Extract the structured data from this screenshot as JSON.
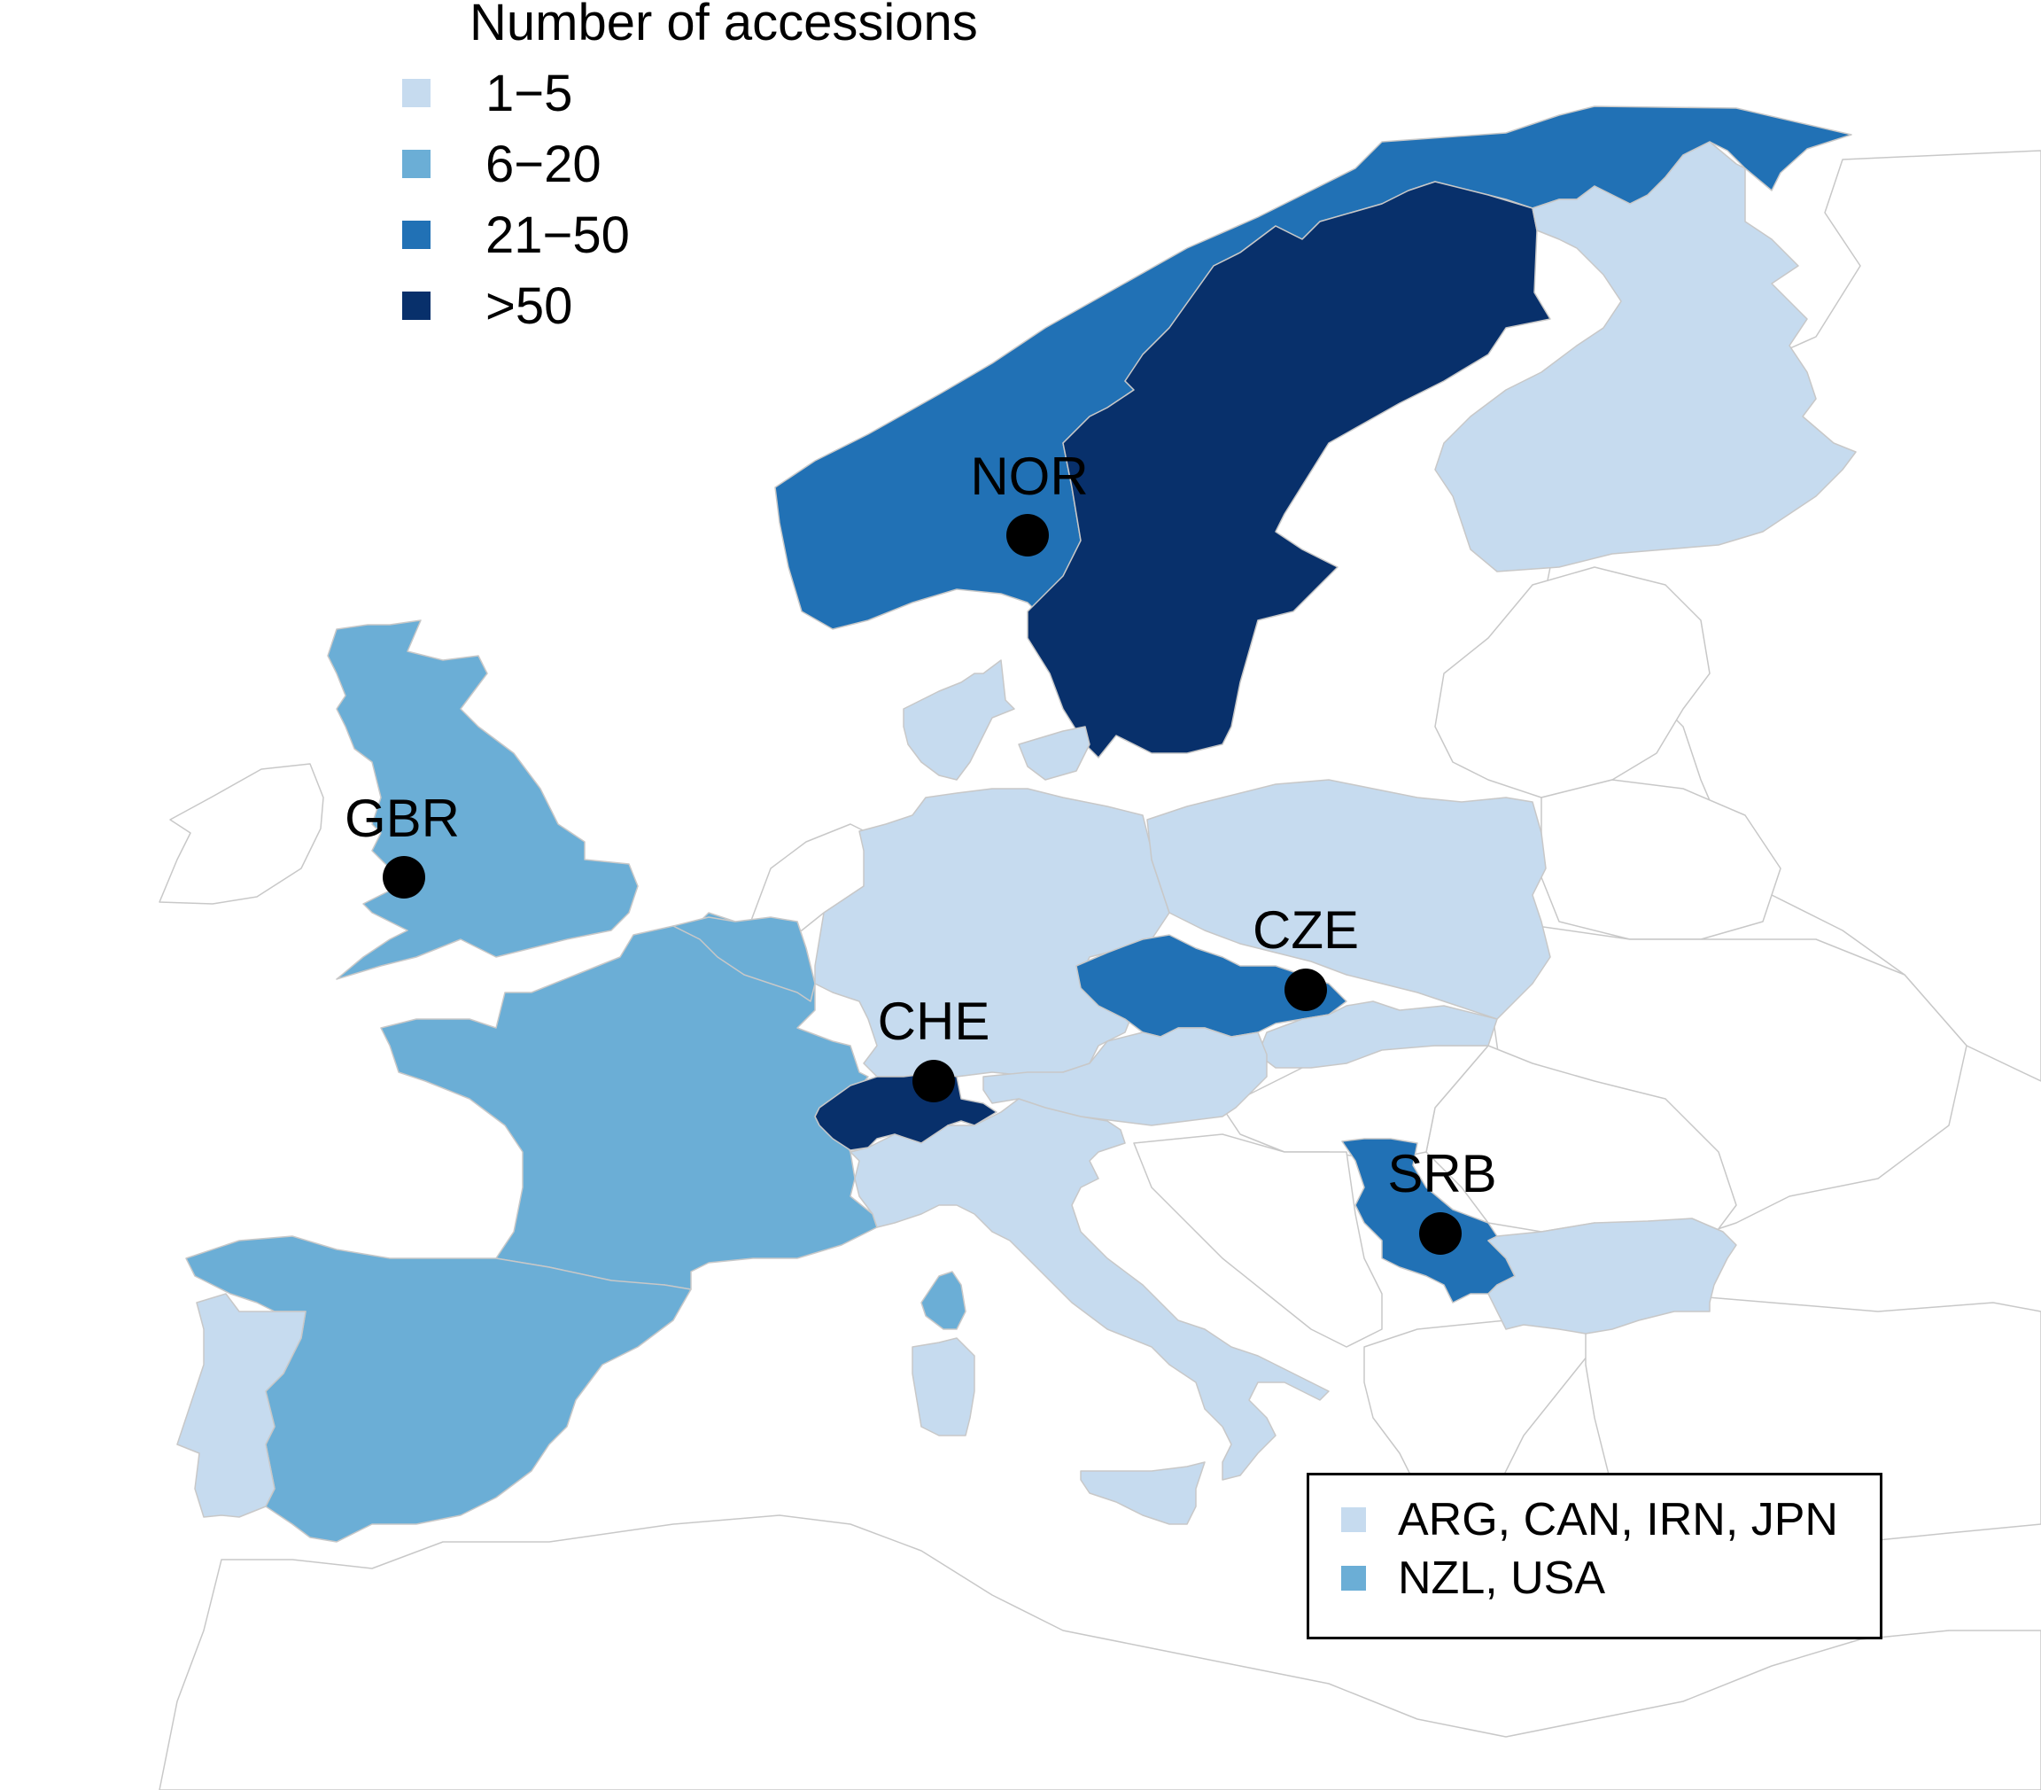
{
  "legend": {
    "title": "Number of accessions",
    "items": [
      {
        "label": "1−5",
        "color": "#c6dbef"
      },
      {
        "label": "6−20",
        "color": "#6baed6"
      },
      {
        "label": "21−50",
        "color": "#2171b5"
      },
      {
        "label": ">50",
        "color": "#08306b"
      }
    ]
  },
  "other_countries": {
    "items": [
      {
        "label": "ARG, CAN, IRN, JPN",
        "color": "#c6dbef"
      },
      {
        "label": "NZL, USA",
        "color": "#6baed6"
      }
    ]
  },
  "markers": [
    {
      "code": "NOR"
    },
    {
      "code": "GBR"
    },
    {
      "code": "CZE"
    },
    {
      "code": "CHE"
    },
    {
      "code": "SRB"
    }
  ],
  "countries": {
    "sweden": {
      "class": ">50"
    },
    "norway": {
      "class": "21−50"
    },
    "finland": {
      "class": "1−5"
    },
    "uk": {
      "class": "6−20"
    },
    "france": {
      "class": "6−20"
    },
    "spain": {
      "class": "6−20"
    },
    "portugal": {
      "class": "1−5"
    },
    "belgium": {
      "class": "6−20"
    },
    "germany": {
      "class": "1−5"
    },
    "denmark": {
      "class": "1−5"
    },
    "poland": {
      "class": "1−5"
    },
    "czechia": {
      "class": "21−50"
    },
    "switzerland": {
      "class": ">50"
    },
    "austria": {
      "class": "1−5"
    },
    "slovakia": {
      "class": "1−5"
    },
    "italy": {
      "class": "1−5"
    },
    "serbia": {
      "class": "21−50"
    },
    "bulgaria": {
      "class": "1−5"
    },
    "corsica": {
      "class": "6−20"
    },
    "sardinia": {
      "class": "1−5"
    },
    "sicily": {
      "class": "1−5"
    }
  }
}
